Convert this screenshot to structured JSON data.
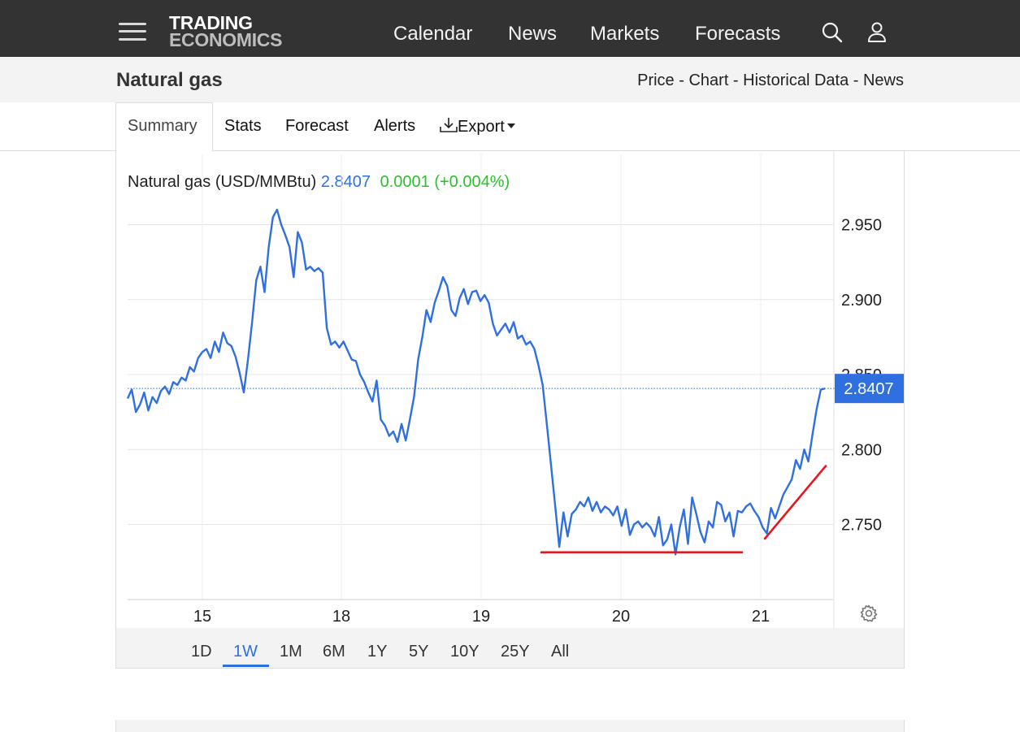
{
  "header": {
    "logo_line1": "TRADING",
    "logo_line2": "ECONOMICS",
    "nav": [
      "Calendar",
      "News",
      "Markets",
      "Forecasts"
    ],
    "icons": [
      "menu-icon",
      "search-icon",
      "user-icon"
    ]
  },
  "subheader": {
    "title": "Natural gas",
    "links": [
      "Price",
      "Chart",
      "Historical Data",
      "News"
    ],
    "separator": " - "
  },
  "tabs": {
    "items": [
      "Summary",
      "Stats",
      "Forecast",
      "Alerts",
      "Export"
    ],
    "active": "Summary"
  },
  "quote": {
    "label": "Natural gas (USD/MMBtu)",
    "price": "2.8407",
    "change": "0.0001",
    "change_pct": "(+0.004%)",
    "price_color": "#2f6fe0",
    "change_color": "#2ebf2e"
  },
  "ranges": {
    "items": [
      "1D",
      "1W",
      "1M",
      "6M",
      "1Y",
      "5Y",
      "10Y",
      "25Y",
      "All"
    ],
    "active": "1W"
  },
  "chart_data": {
    "type": "line",
    "title": "",
    "xlabel": "",
    "ylabel": "",
    "x_tick_labels": [
      "15",
      "18",
      "19",
      "20",
      "21"
    ],
    "y_tick_labels": [
      "2.950",
      "2.900",
      "2.850",
      "2.800",
      "2.750"
    ],
    "ylim": [
      2.7,
      2.965
    ],
    "grid": true,
    "last_value_label": "2.8407",
    "line_color": "#2f6fe0",
    "annotation_color": "#e8141e",
    "series": [
      {
        "values": [
          2.834,
          2.84,
          2.825,
          2.83,
          2.838,
          2.826,
          2.835,
          2.831,
          2.839,
          2.842,
          2.837,
          2.845,
          2.843,
          2.848,
          2.846,
          2.855,
          2.852,
          2.861,
          2.865,
          2.867,
          2.861,
          2.872,
          2.865,
          2.878,
          2.871,
          2.869,
          2.862,
          2.851,
          2.838,
          2.86,
          2.885,
          2.913,
          2.922,
          2.905,
          2.935,
          2.955,
          2.96,
          2.95,
          2.943,
          2.935,
          2.915,
          2.945,
          2.938,
          2.92,
          2.922,
          2.919,
          2.921,
          2.918,
          2.881,
          2.87,
          2.872,
          2.868,
          2.872,
          2.866,
          2.86,
          2.859,
          2.85,
          2.845,
          2.838,
          2.832,
          2.846,
          2.82,
          2.816,
          2.809,
          2.812,
          2.805,
          2.817,
          2.806,
          2.82,
          2.835,
          2.86,
          2.875,
          2.893,
          2.885,
          2.898,
          2.906,
          2.915,
          2.909,
          2.893,
          2.889,
          2.901,
          2.907,
          2.897,
          2.905,
          2.906,
          2.899,
          2.903,
          2.898,
          2.884,
          2.876,
          2.88,
          2.884,
          2.878,
          2.885,
          2.874,
          2.876,
          2.87,
          2.872,
          2.867,
          2.856,
          2.843,
          2.817,
          2.79,
          2.763,
          2.735,
          2.758,
          2.742,
          2.757,
          2.76,
          2.765,
          2.762,
          2.768,
          2.759,
          2.765,
          2.758,
          2.762,
          2.76,
          2.756,
          2.762,
          2.749,
          2.76,
          2.743,
          2.75,
          2.752,
          2.748,
          2.751,
          2.748,
          2.742,
          2.755,
          2.736,
          2.74,
          2.75,
          2.73,
          2.748,
          2.76,
          2.737,
          2.768,
          2.757,
          2.745,
          2.738,
          2.752,
          2.748,
          2.765,
          2.763,
          2.752,
          2.758,
          2.742,
          2.759,
          2.758,
          2.762,
          2.764,
          2.759,
          2.755,
          2.748,
          2.744,
          2.761,
          2.754,
          2.762,
          2.77,
          2.775,
          2.78,
          2.793,
          2.787,
          2.8,
          2.792,
          2.81,
          2.827,
          2.84,
          2.8407
        ]
      }
    ],
    "annotations": [
      {
        "type": "line",
        "label": "",
        "x_from": "19",
        "y_from": 2.7314,
        "x_to": "20-21",
        "y_to": 2.7314
      },
      {
        "type": "line",
        "label": "",
        "x_from": "21",
        "y_from": 2.7405,
        "x_to": "21",
        "y_to": 2.789
      }
    ]
  }
}
